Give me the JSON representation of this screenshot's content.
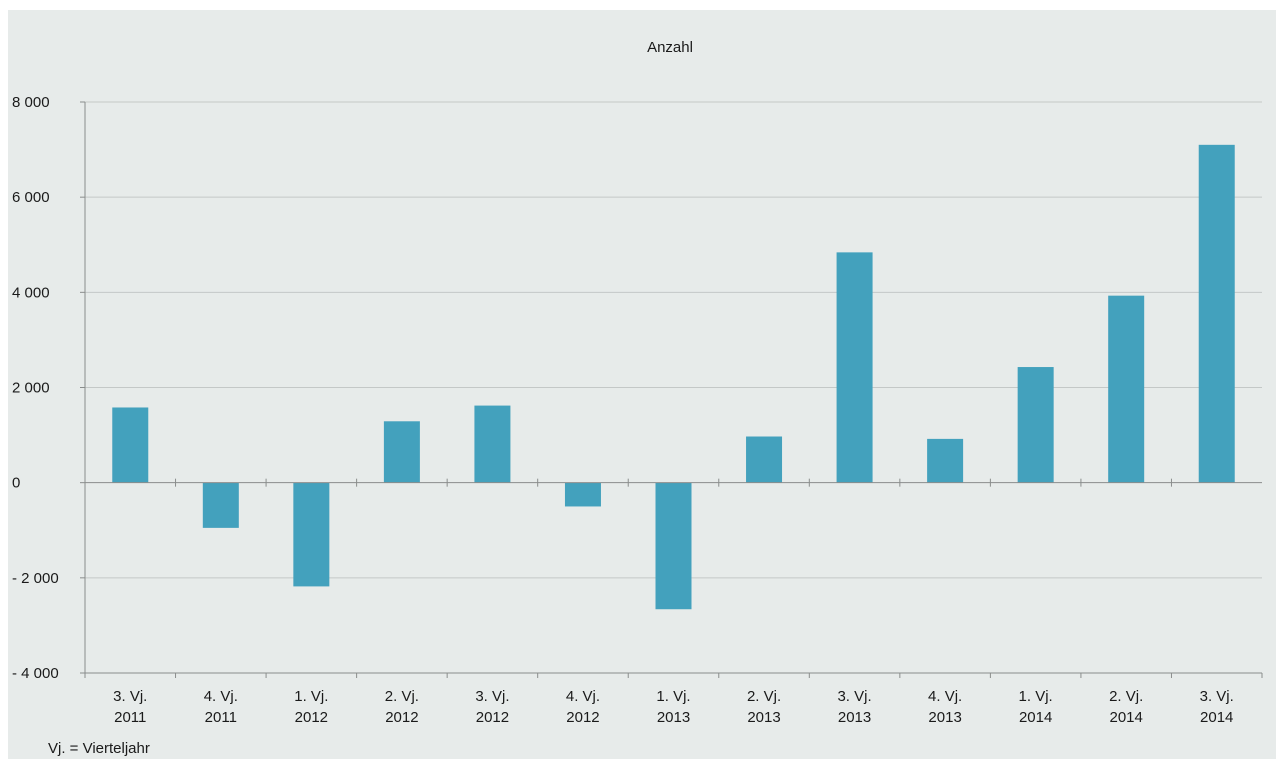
{
  "chart_data": {
    "type": "bar",
    "title": "Anzahl",
    "note": "Vj. = Vierteljahr",
    "categories": [
      [
        "3. Vj.",
        "2011"
      ],
      [
        "4. Vj.",
        "2011"
      ],
      [
        "1. Vj.",
        "2012"
      ],
      [
        "2. Vj.",
        "2012"
      ],
      [
        "3. Vj.",
        "2012"
      ],
      [
        "4. Vj.",
        "2012"
      ],
      [
        "1. Vj.",
        "2013"
      ],
      [
        "2. Vj.",
        "2013"
      ],
      [
        "3. Vj.",
        "2013"
      ],
      [
        "4. Vj.",
        "2013"
      ],
      [
        "1. Vj.",
        "2014"
      ],
      [
        "2. Vj.",
        "2014"
      ],
      [
        "3. Vj.",
        "2014"
      ]
    ],
    "values": [
      1580,
      -950,
      -2180,
      1290,
      1620,
      -500,
      -2660,
      970,
      4840,
      920,
      2430,
      3930,
      7100
    ],
    "ylim": [
      -4000,
      8000
    ],
    "yticks": [
      8000,
      6000,
      4000,
      2000,
      0,
      -2000,
      -4000
    ],
    "ytick_labels": [
      "8 000",
      "6 000",
      "4 000",
      "2 000",
      "0",
      "- 2 000",
      "- 4 000"
    ],
    "grid": true,
    "colors": {
      "bar": "#43a1bd",
      "grid": "#c4c8c7",
      "axis": "#8a8d8c",
      "background": "#e7ebea"
    }
  }
}
